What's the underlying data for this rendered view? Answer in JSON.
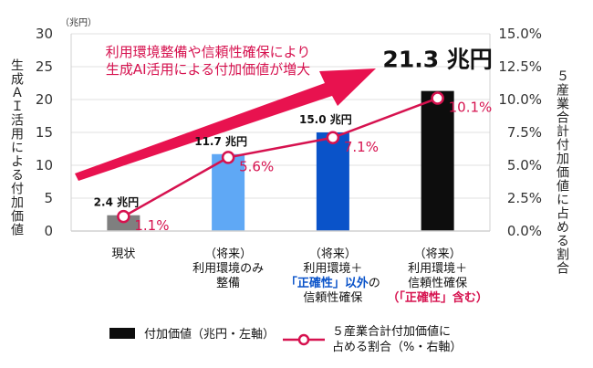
{
  "chart_data": {
    "type": "bar",
    "categories": [
      [
        "現状"
      ],
      [
        "（将来）",
        "利用環境のみ",
        "整備"
      ],
      [
        "（将来）",
        "利用環境＋",
        "「正確性」以外の",
        "信頼性確保"
      ],
      [
        "（将来）",
        "利用環境＋",
        "信頼性確保",
        "（「正確性」含む）"
      ]
    ],
    "category_highlight": [
      "",
      "",
      "「正確性」以外",
      "（「正確性」含む）"
    ],
    "series": [
      {
        "name": "付加価値（兆円・左軸）",
        "axis": "left",
        "values": [
          2.4,
          11.7,
          15.0,
          21.3
        ],
        "labels": [
          "2.4 兆円",
          "11.7 兆円",
          "15.0 兆円",
          "21.3 兆円"
        ],
        "colors": [
          "#7f7f7f",
          "#5fa8f5",
          "#0a53c9",
          "#0d0d0d"
        ]
      },
      {
        "name": "5産業合計付加価値に占める割合（%・右軸）",
        "axis": "right",
        "values": [
          1.1,
          5.6,
          7.1,
          10.1
        ],
        "labels": [
          "1.1%",
          "5.6%",
          "7.1%",
          "10.1%"
        ],
        "color": "#d6124f"
      }
    ],
    "ylim": [
      0,
      30
    ],
    "yticks": [
      "0",
      "5",
      "10",
      "15",
      "20",
      "25",
      "30"
    ],
    "y_unit": "（兆円）",
    "y2lim": [
      0,
      15
    ],
    "y2ticks": [
      "0.0%",
      "2.5%",
      "5.0%",
      "7.5%",
      "10.0%",
      "12.5%",
      "15.0%"
    ],
    "ylabel": "生成ＡＩ活用による付加価値",
    "y2label": "５産業合計付加価値に占める割合",
    "annotation": [
      "利用環境整備や信頼性確保により",
      "生成AI活用による付加価値が増大"
    ],
    "legend": {
      "bar": "付加価値（兆円・左軸）",
      "line": [
        "５産業合計付加価値に",
        "占める割合（%・右軸）"
      ]
    }
  }
}
